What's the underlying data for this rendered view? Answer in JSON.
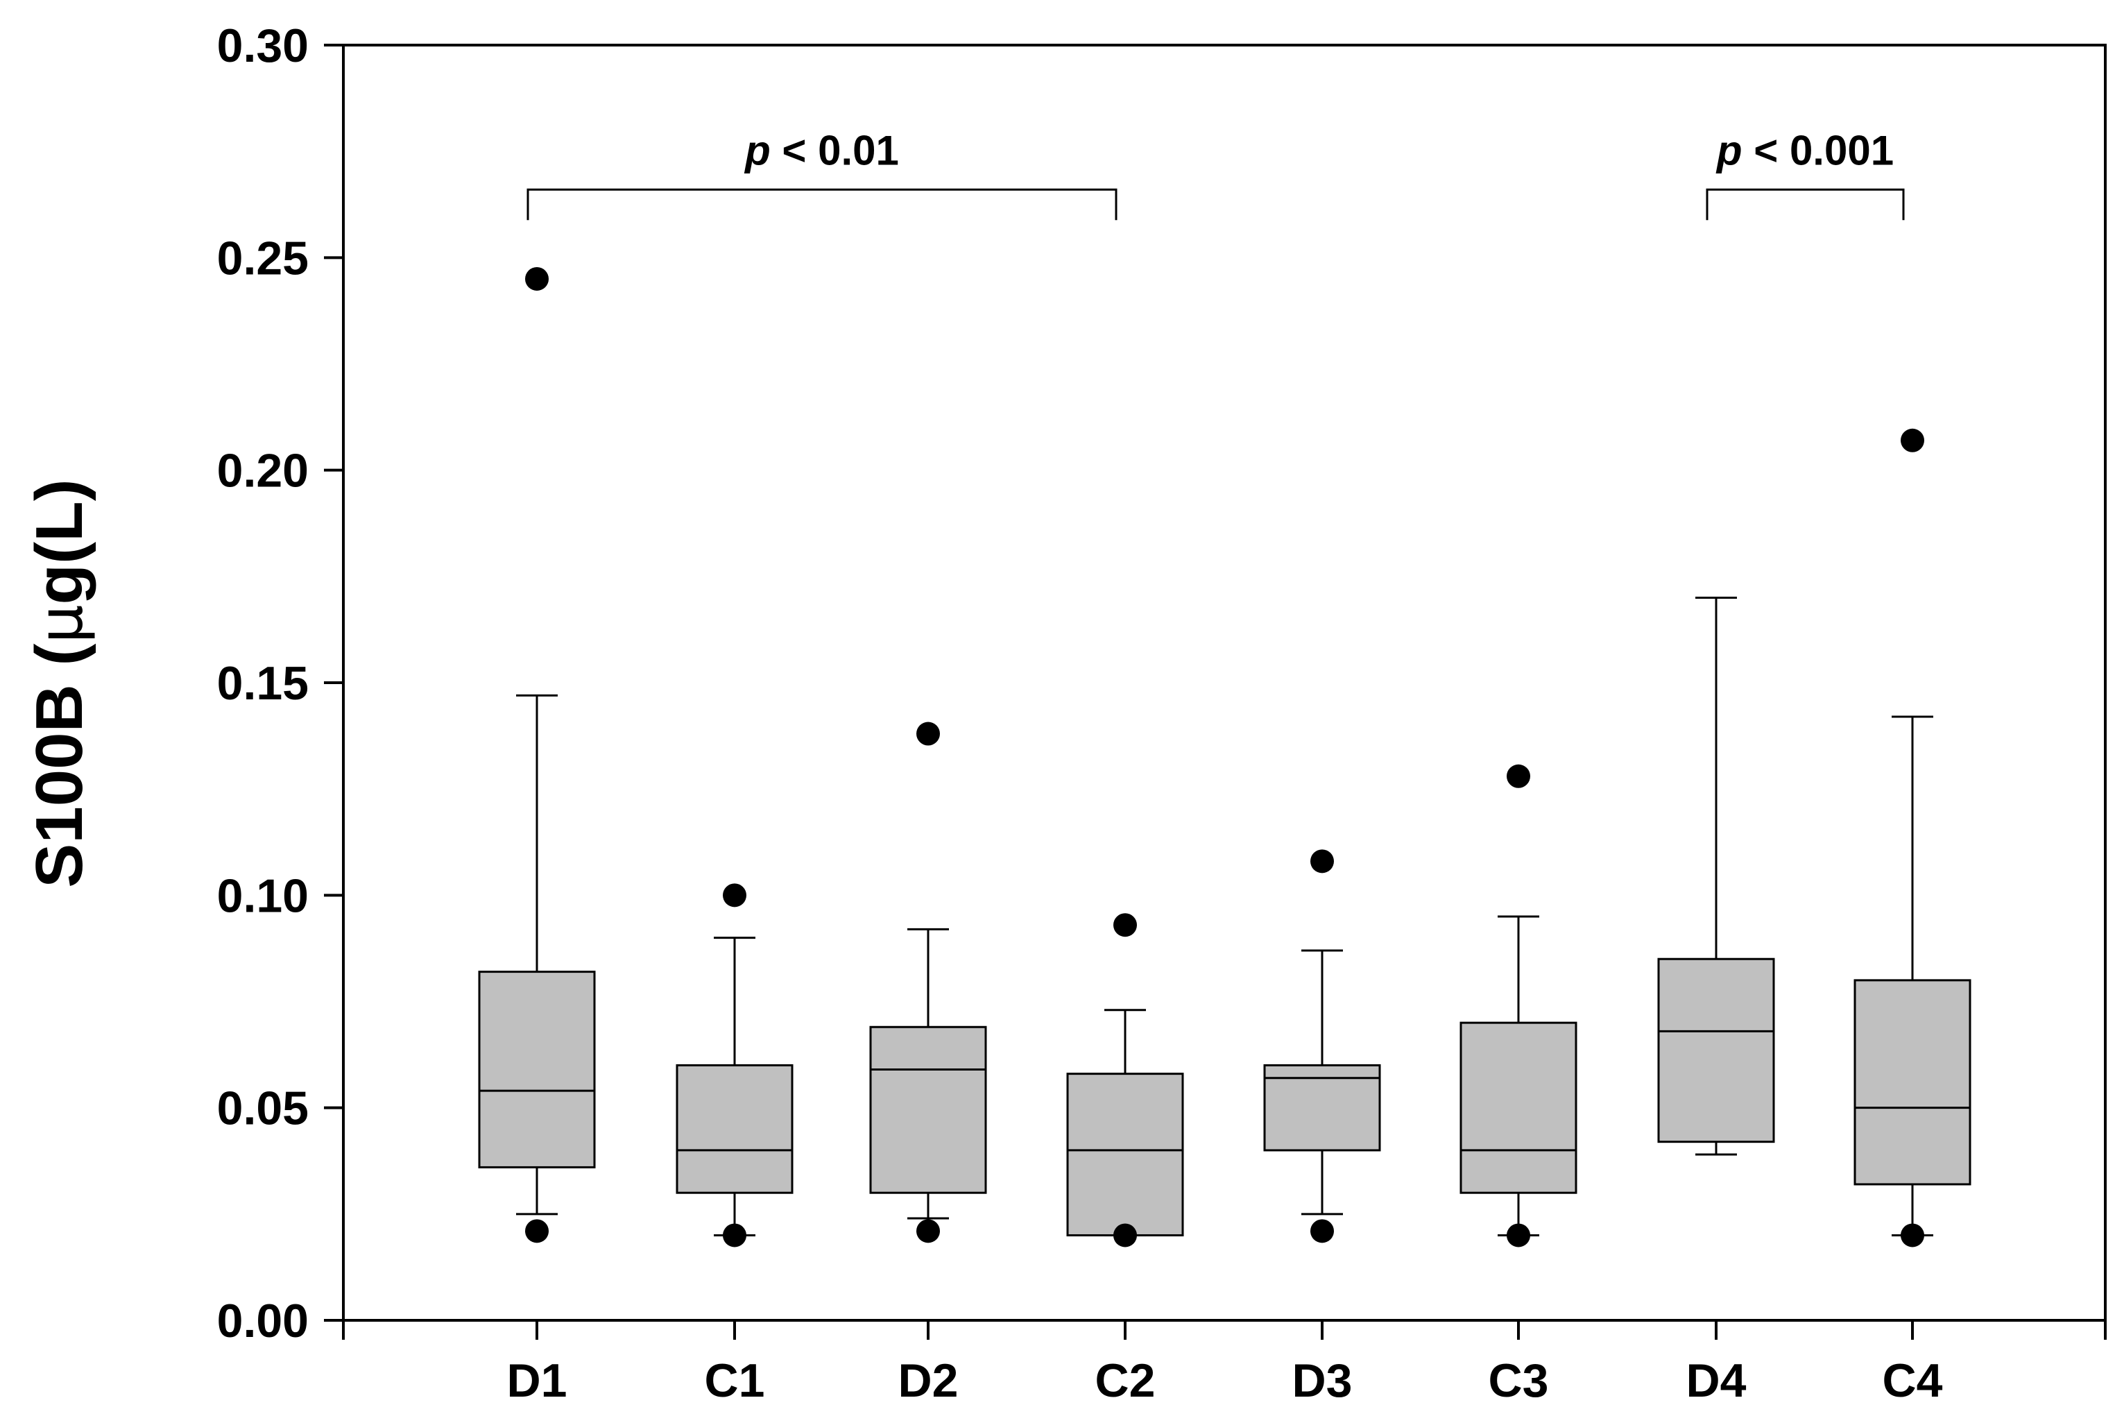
{
  "chart_data": {
    "type": "box",
    "ylabel": "S100B (μg(L)",
    "ylabel_parts": {
      "main": "S100B (",
      "mu": "μ",
      "rest": "g(L)"
    },
    "xlabel": "",
    "ylim": [
      0,
      0.3
    ],
    "yticks": [
      0.0,
      0.05,
      0.1,
      0.15,
      0.2,
      0.25,
      0.3
    ],
    "ytick_labels": [
      "0.00",
      "0.05",
      "0.10",
      "0.15",
      "0.20",
      "0.25",
      "0.30"
    ],
    "categories": [
      "D1",
      "C1",
      "D2",
      "C2",
      "D3",
      "C3",
      "D4",
      "C4"
    ],
    "boxes": [
      {
        "name": "D1",
        "whisker_low": 0.025,
        "q1": 0.036,
        "median": 0.054,
        "q3": 0.082,
        "whisker_high": 0.147,
        "outliers": [
          0.245,
          0.021
        ]
      },
      {
        "name": "C1",
        "whisker_low": 0.02,
        "q1": 0.03,
        "median": 0.04,
        "q3": 0.06,
        "whisker_high": 0.09,
        "outliers": [
          0.1,
          0.02
        ]
      },
      {
        "name": "D2",
        "whisker_low": 0.024,
        "q1": 0.03,
        "median": 0.059,
        "q3": 0.069,
        "whisker_high": 0.092,
        "outliers": [
          0.138,
          0.021
        ]
      },
      {
        "name": "C2",
        "whisker_low": 0.02,
        "q1": 0.02,
        "median": 0.04,
        "q3": 0.058,
        "whisker_high": 0.073,
        "outliers": [
          0.093,
          0.02
        ]
      },
      {
        "name": "D3",
        "whisker_low": 0.025,
        "q1": 0.04,
        "median": 0.057,
        "q3": 0.06,
        "whisker_high": 0.087,
        "outliers": [
          0.108,
          0.021
        ]
      },
      {
        "name": "C3",
        "whisker_low": 0.02,
        "q1": 0.03,
        "median": 0.04,
        "q3": 0.07,
        "whisker_high": 0.095,
        "outliers": [
          0.128,
          0.02
        ]
      },
      {
        "name": "D4",
        "whisker_low": 0.039,
        "q1": 0.042,
        "median": 0.068,
        "q3": 0.085,
        "whisker_high": 0.17,
        "outliers": []
      },
      {
        "name": "C4",
        "whisker_low": 0.02,
        "q1": 0.032,
        "median": 0.05,
        "q3": 0.08,
        "whisker_high": 0.142,
        "outliers": [
          0.207,
          0.02
        ]
      }
    ],
    "significance": [
      {
        "from": "D1",
        "to": "C2",
        "p_symbol": "p",
        "text": " < 0.01",
        "label": "p < 0.01",
        "y": 0.266
      },
      {
        "from": "D4",
        "to": "C4",
        "p_symbol": "p",
        "text": " < 0.001",
        "label": "p < 0.001",
        "y": 0.266
      }
    ],
    "colors": {
      "box_fill": "#c0c0c0",
      "line": "#000000",
      "background": "#ffffff"
    }
  }
}
